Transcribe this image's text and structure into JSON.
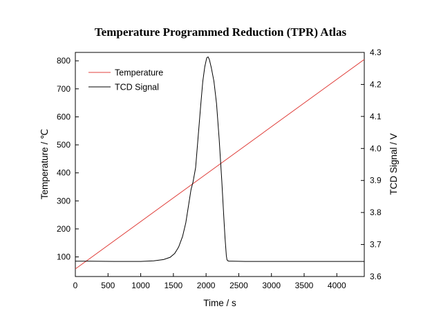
{
  "chart_data": {
    "type": "line",
    "title": "Temperature Programmed Reduction (TPR) Atlas",
    "xlabel": "Time / s",
    "ylabel_left": "Temperature / ℃",
    "ylabel_right": "TCD Signal / V",
    "xlim": [
      0,
      4420
    ],
    "ylim_left": [
      30,
      830
    ],
    "ylim_right": [
      3.6,
      4.3
    ],
    "x_ticks": [
      0,
      500,
      1000,
      1500,
      2000,
      2500,
      3000,
      3500,
      4000
    ],
    "x_tick_labels": [
      "0",
      "500",
      "1000",
      "1500",
      "2000",
      "2500",
      "3000",
      "3500",
      "4000"
    ],
    "y_left_ticks": [
      100,
      200,
      300,
      400,
      500,
      600,
      700,
      800
    ],
    "y_left_tick_labels": [
      "100",
      "200",
      "300",
      "400",
      "500",
      "600",
      "700",
      "800"
    ],
    "y_right_ticks": [
      3.6,
      3.7,
      3.8,
      3.9,
      4.0,
      4.1,
      4.2,
      4.3
    ],
    "y_right_tick_labels": [
      "3.6",
      "3.7",
      "3.8",
      "3.9",
      "4.0",
      "4.1",
      "4.2",
      "4.3"
    ],
    "legend_position": "top-left",
    "grid": false,
    "series": [
      {
        "name": "Temperature",
        "axis": "left",
        "color": "#e0403c",
        "x": [
          0,
          4420
        ],
        "y": [
          57,
          805
        ]
      },
      {
        "name": "TCD Signal",
        "axis": "right",
        "color": "#000000",
        "x": [
          0,
          200,
          600,
          1000,
          1200,
          1350,
          1450,
          1520,
          1580,
          1640,
          1690,
          1730,
          1770,
          1800,
          1840,
          1880,
          1920,
          1950,
          1980,
          2010,
          2030,
          2050,
          2080,
          2120,
          2160,
          2200,
          2240,
          2270,
          2290,
          2310,
          2320,
          2335,
          2350,
          2400,
          2600,
          3000,
          3500,
          4000,
          4420
        ],
        "y": [
          3.648,
          3.648,
          3.647,
          3.647,
          3.649,
          3.653,
          3.66,
          3.672,
          3.692,
          3.725,
          3.768,
          3.82,
          3.872,
          3.895,
          3.94,
          4.04,
          4.14,
          4.21,
          4.255,
          4.283,
          4.286,
          4.278,
          4.252,
          4.21,
          4.14,
          4.03,
          3.9,
          3.79,
          3.72,
          3.665,
          3.652,
          3.649,
          3.648,
          3.648,
          3.647,
          3.647,
          3.647,
          3.647,
          3.647
        ]
      }
    ]
  }
}
